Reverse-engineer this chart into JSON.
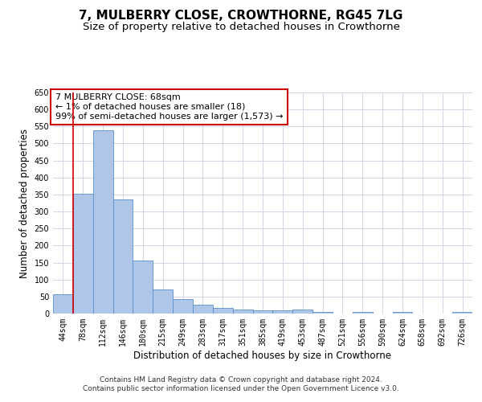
{
  "title": "7, MULBERRY CLOSE, CROWTHORNE, RG45 7LG",
  "subtitle": "Size of property relative to detached houses in Crowthorne",
  "xlabel": "Distribution of detached houses by size in Crowthorne",
  "ylabel": "Number of detached properties",
  "categories": [
    "44sqm",
    "78sqm",
    "112sqm",
    "146sqm",
    "180sqm",
    "215sqm",
    "249sqm",
    "283sqm",
    "317sqm",
    "351sqm",
    "385sqm",
    "419sqm",
    "453sqm",
    "487sqm",
    "521sqm",
    "556sqm",
    "590sqm",
    "624sqm",
    "658sqm",
    "692sqm",
    "726sqm"
  ],
  "values": [
    57,
    352,
    540,
    336,
    157,
    70,
    42,
    25,
    17,
    11,
    9,
    9,
    11,
    5,
    0,
    5,
    0,
    5,
    0,
    0,
    5
  ],
  "bar_color": "#aec6e8",
  "bar_edge_color": "#5b8fc9",
  "highlight_color": "#cc0000",
  "annotation_text": "7 MULBERRY CLOSE: 68sqm\n← 1% of detached houses are smaller (18)\n99% of semi-detached houses are larger (1,573) →",
  "annotation_box_color": "#ffffff",
  "annotation_box_edge_color": "#cc0000",
  "ylim": [
    0,
    650
  ],
  "yticks": [
    0,
    50,
    100,
    150,
    200,
    250,
    300,
    350,
    400,
    450,
    500,
    550,
    600,
    650
  ],
  "background_color": "#ffffff",
  "grid_color": "#d0d8e8",
  "footer_text": "Contains HM Land Registry data © Crown copyright and database right 2024.\nContains public sector information licensed under the Open Government Licence v3.0.",
  "title_fontsize": 11,
  "subtitle_fontsize": 9.5,
  "axis_label_fontsize": 8.5,
  "tick_fontsize": 7,
  "annotation_fontsize": 8,
  "footer_fontsize": 6.5
}
